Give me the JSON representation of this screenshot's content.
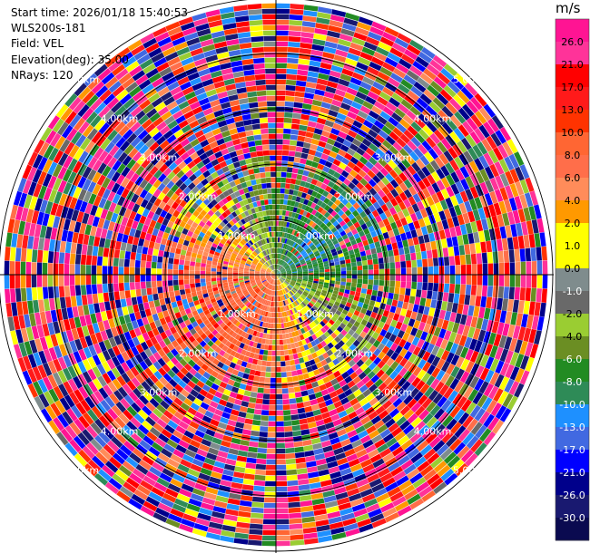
{
  "header": {
    "start_time": "Start time: 2026/01/18 15:40:53",
    "site": "WLS200s-181",
    "field": "Field: VEL",
    "elevation": "Elevation(deg): 35.00",
    "nrays": "NRays: 120"
  },
  "colorbar": {
    "unit": "m/s",
    "ticks": [
      "26.0",
      "21.0",
      "17.0",
      "13.0",
      "10.0",
      "8.0",
      "6.0",
      "4.0",
      "2.0",
      "1.0",
      "0.0",
      "-1.0",
      "-2.0",
      "-4.0",
      "-6.0",
      "-8.0",
      "-10.0",
      "-13.0",
      "-17.0",
      "-21.0",
      "-26.0",
      "-30.0"
    ],
    "colors": [
      "#ff1493",
      "#ff3399",
      "#ff0000",
      "#ff1a1a",
      "#ff3300",
      "#ff6633",
      "#ff6e4a",
      "#ff8c5a",
      "#ff9900",
      "#ffff00",
      "#ffff00",
      "#7f8c8d",
      "#696969",
      "#9acd32",
      "#6b8e23",
      "#228b22",
      "#2e8b57",
      "#1e90ff",
      "#4169e1",
      "#0000ff",
      "#00008b",
      "#191970",
      "#0a0a50"
    ]
  },
  "chart_data": {
    "type": "ppi",
    "field": "VEL",
    "elevation_deg": 35.0,
    "n_rays": 120,
    "range_rings": [
      "1.00km",
      "2.00km",
      "3.00km",
      "4.00km",
      "5.00km"
    ],
    "vmin": -30.0,
    "vmax": 30.0
  }
}
